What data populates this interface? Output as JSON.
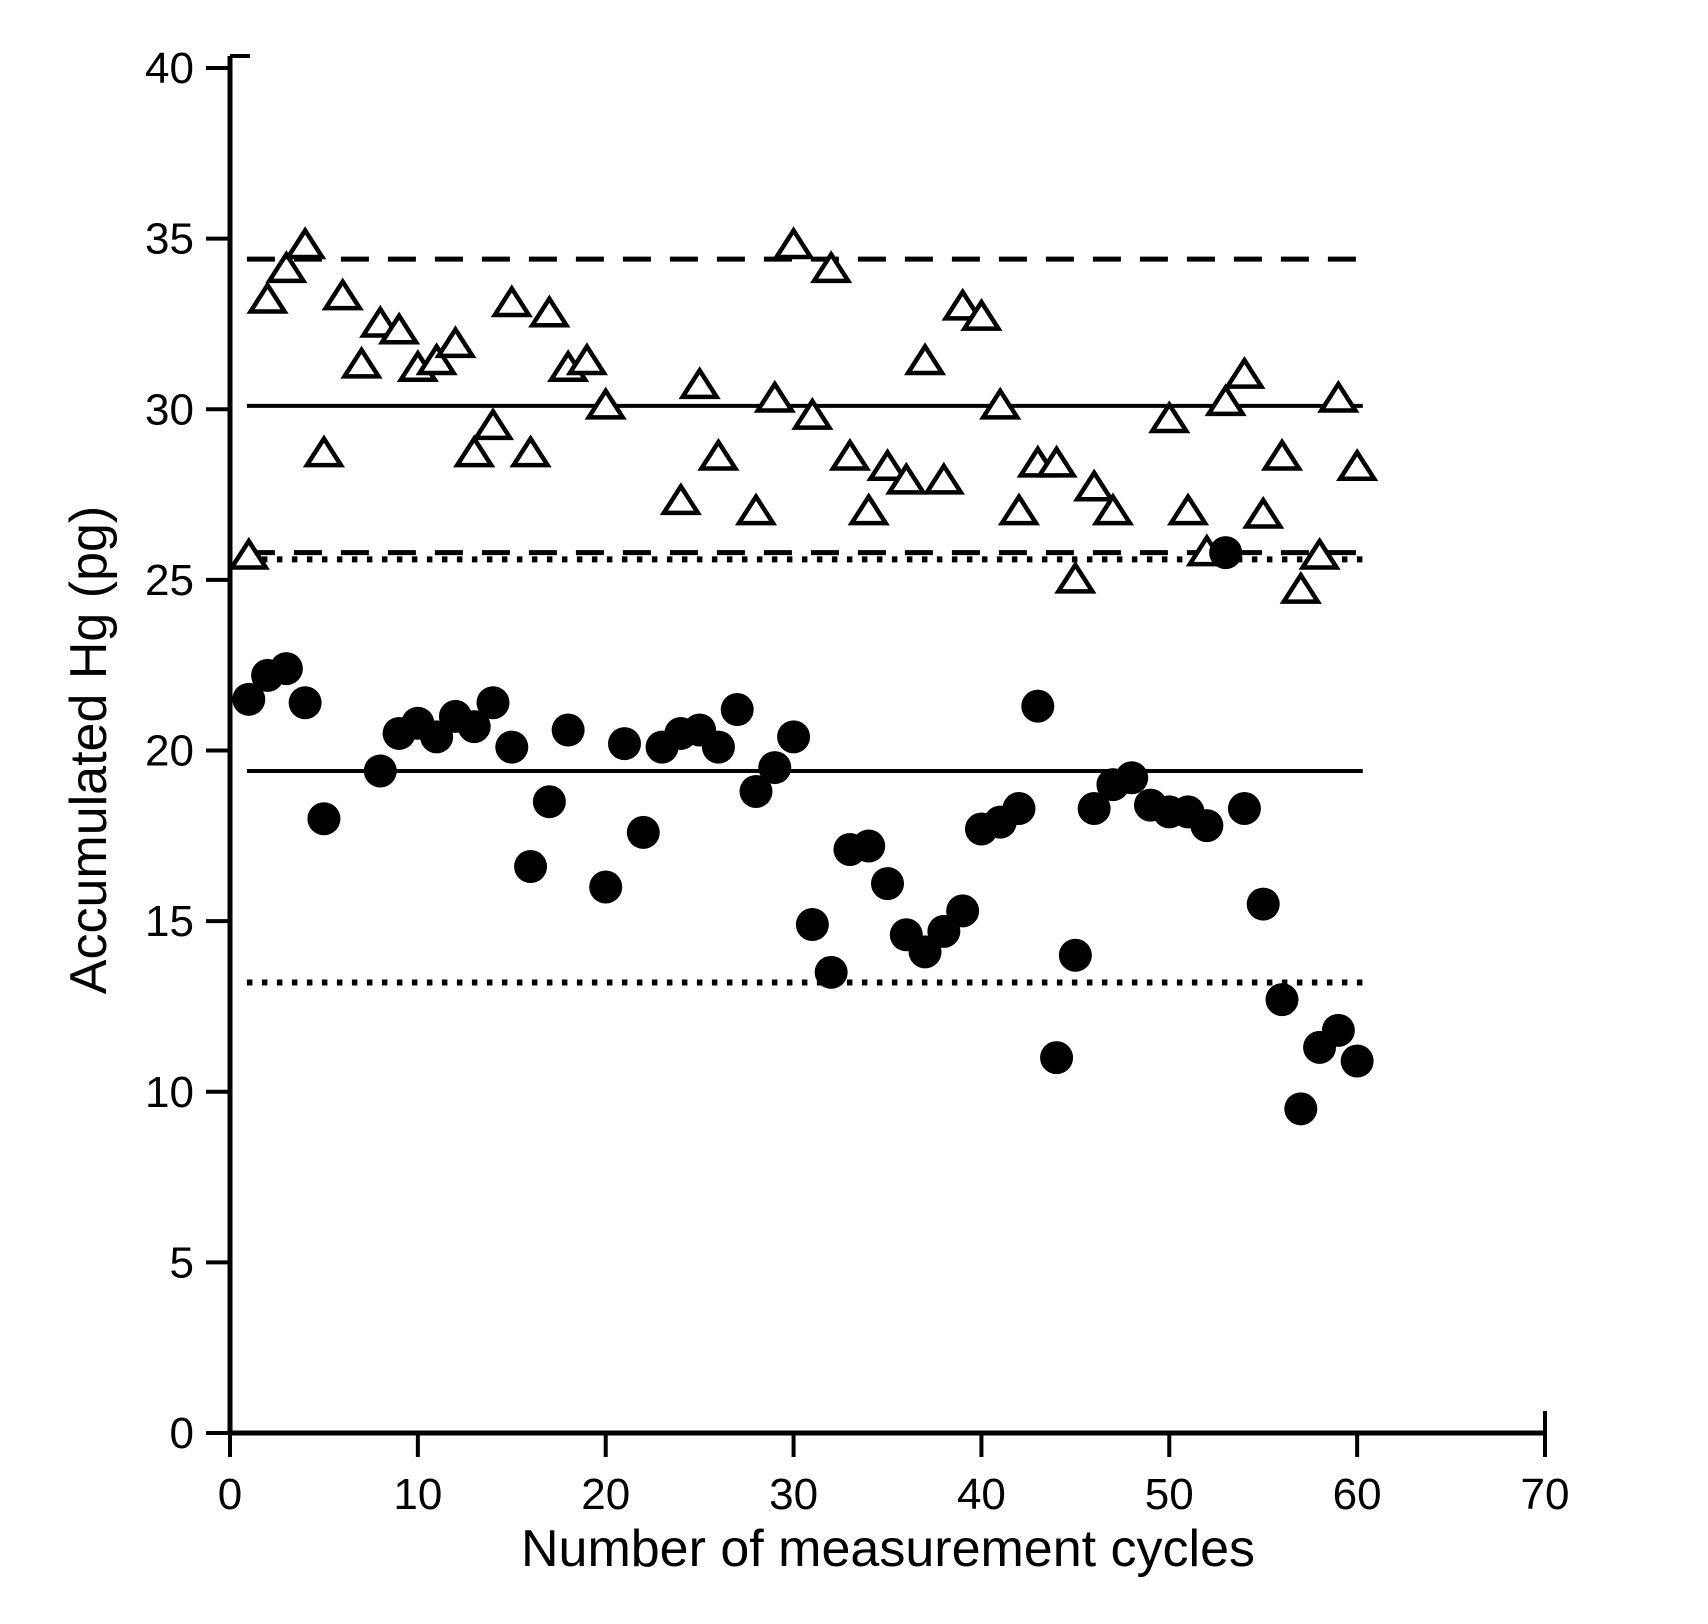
{
  "figure": {
    "background": "#ffffff",
    "ink_color": "#000000"
  },
  "chart_data": {
    "type": "scatter",
    "title": "",
    "xlabel": "Number of measurement cycles",
    "ylabel": "Accumulated Hg (pg)",
    "xlim": [
      0,
      70
    ],
    "ylim": [
      0,
      40
    ],
    "x_ticks": [
      0,
      10,
      20,
      30,
      40,
      50,
      60,
      70
    ],
    "y_ticks": [
      0,
      5,
      10,
      15,
      20,
      25,
      30,
      35,
      40
    ],
    "grid": false,
    "legend_position": "none",
    "series": [
      {
        "name": "open-triangle-series",
        "marker": "open-triangle",
        "points": [
          [
            1,
            25.7
          ],
          [
            2,
            33.2
          ],
          [
            3,
            34.1
          ],
          [
            4,
            34.8
          ],
          [
            5,
            28.7
          ],
          [
            6,
            33.3
          ],
          [
            7,
            31.3
          ],
          [
            8,
            32.5
          ],
          [
            9,
            32.3
          ],
          [
            10,
            31.2
          ],
          [
            11,
            31.4
          ],
          [
            12,
            31.9
          ],
          [
            13,
            28.7
          ],
          [
            14,
            29.5
          ],
          [
            15,
            33.1
          ],
          [
            16,
            28.7
          ],
          [
            17,
            32.8
          ],
          [
            18,
            31.2
          ],
          [
            19,
            31.4
          ],
          [
            20,
            30.1
          ],
          [
            24,
            27.3
          ],
          [
            25,
            30.7
          ],
          [
            26,
            28.6
          ],
          [
            28,
            27.0
          ],
          [
            29,
            30.3
          ],
          [
            30,
            34.8
          ],
          [
            31,
            29.8
          ],
          [
            32,
            34.1
          ],
          [
            33,
            28.6
          ],
          [
            34,
            27.0
          ],
          [
            35,
            28.3
          ],
          [
            36,
            27.9
          ],
          [
            37,
            31.4
          ],
          [
            38,
            27.9
          ],
          [
            39,
            33.0
          ],
          [
            40,
            32.7
          ],
          [
            41,
            30.1
          ],
          [
            42,
            27.0
          ],
          [
            43,
            28.4
          ],
          [
            44,
            28.4
          ],
          [
            45,
            25.0
          ],
          [
            46,
            27.7
          ],
          [
            47,
            27.0
          ],
          [
            50,
            29.7
          ],
          [
            51,
            27.0
          ],
          [
            52,
            25.8
          ],
          [
            53,
            30.2
          ],
          [
            54,
            31.0
          ],
          [
            55,
            26.9
          ],
          [
            56,
            28.6
          ],
          [
            57,
            24.7
          ],
          [
            58,
            25.7
          ],
          [
            59,
            30.3
          ],
          [
            60,
            28.3
          ]
        ]
      },
      {
        "name": "filled-circle-series",
        "marker": "filled-circle",
        "points": [
          [
            1,
            21.5
          ],
          [
            2,
            22.2
          ],
          [
            3,
            22.4
          ],
          [
            4,
            21.4
          ],
          [
            5,
            18.0
          ],
          [
            8,
            19.4
          ],
          [
            9,
            20.5
          ],
          [
            10,
            20.8
          ],
          [
            11,
            20.4
          ],
          [
            12,
            21.0
          ],
          [
            13,
            20.7
          ],
          [
            14,
            21.4
          ],
          [
            15,
            20.1
          ],
          [
            16,
            16.6
          ],
          [
            17,
            18.5
          ],
          [
            18,
            20.6
          ],
          [
            20,
            16.0
          ],
          [
            21,
            20.2
          ],
          [
            22,
            17.6
          ],
          [
            23,
            20.1
          ],
          [
            24,
            20.5
          ],
          [
            25,
            20.6
          ],
          [
            26,
            20.1
          ],
          [
            27,
            21.2
          ],
          [
            28,
            18.8
          ],
          [
            29,
            19.5
          ],
          [
            30,
            20.4
          ],
          [
            31,
            14.9
          ],
          [
            32,
            13.5
          ],
          [
            33,
            17.1
          ],
          [
            34,
            17.2
          ],
          [
            35,
            16.1
          ],
          [
            36,
            14.6
          ],
          [
            37,
            14.1
          ],
          [
            38,
            14.7
          ],
          [
            39,
            15.3
          ],
          [
            40,
            17.7
          ],
          [
            41,
            17.9
          ],
          [
            42,
            18.3
          ],
          [
            43,
            21.3
          ],
          [
            44,
            11.0
          ],
          [
            45,
            14.0
          ],
          [
            46,
            18.3
          ],
          [
            47,
            19.0
          ],
          [
            48,
            19.2
          ],
          [
            49,
            18.4
          ],
          [
            50,
            18.2
          ],
          [
            51,
            18.2
          ],
          [
            52,
            17.8
          ],
          [
            53,
            25.8
          ],
          [
            54,
            18.3
          ],
          [
            55,
            15.5
          ],
          [
            56,
            12.7
          ],
          [
            57,
            9.5
          ],
          [
            58,
            11.3
          ],
          [
            59,
            11.8
          ],
          [
            60,
            10.9
          ]
        ]
      }
    ],
    "reference_lines": [
      {
        "value": 34.4,
        "style": "dashed",
        "series": "open-triangle-series"
      },
      {
        "value": 30.1,
        "style": "solid",
        "series": "open-triangle-series"
      },
      {
        "value": 25.8,
        "style": "dashed",
        "series": "open-triangle-series"
      },
      {
        "value": 25.6,
        "style": "dotted",
        "series": "filled-circle-series"
      },
      {
        "value": 19.4,
        "style": "solid",
        "series": "filled-circle-series"
      },
      {
        "value": 13.2,
        "style": "dotted",
        "series": "filled-circle-series"
      }
    ],
    "reference_line_x_span": [
      0.9,
      60.3
    ]
  }
}
